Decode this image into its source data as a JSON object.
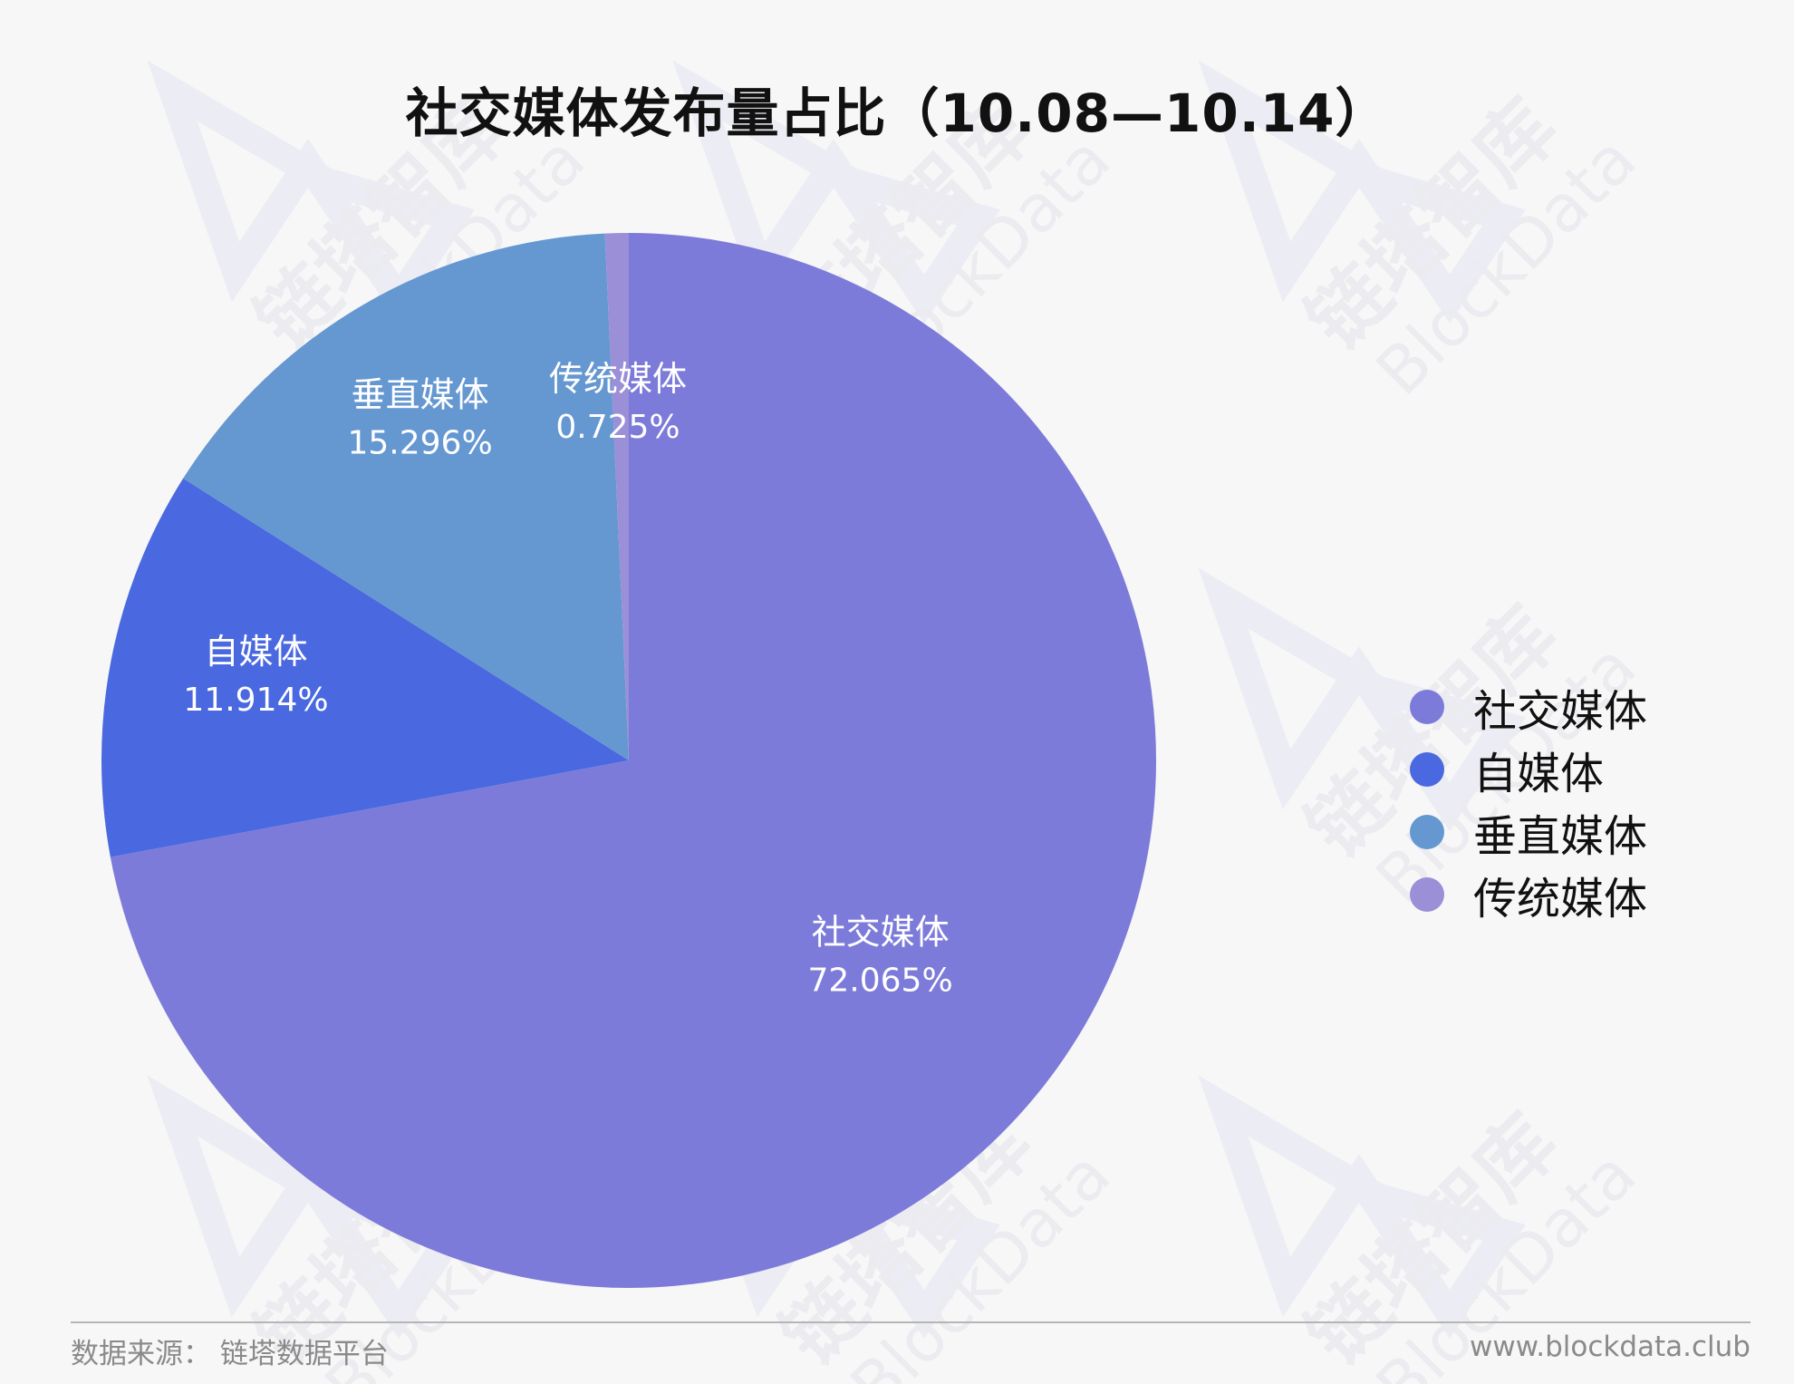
{
  "watermark": {
    "cn": "链塔智库",
    "en": "BlockData"
  },
  "chart_data": {
    "type": "pie",
    "title": "社交媒体发布量占比（10.08—10.14）",
    "unit": "%",
    "slices": [
      {
        "label": "社交媒体",
        "value": 72.065,
        "value_label": "72.065%",
        "color": "#7d7bd9"
      },
      {
        "label": "自媒体",
        "value": 11.914,
        "value_label": "11.914%",
        "color": "#4a69e0"
      },
      {
        "label": "垂直媒体",
        "value": 15.296,
        "value_label": "15.296%",
        "color": "#6597d0"
      },
      {
        "label": "传统媒体",
        "value": 0.725,
        "value_label": "0.725%",
        "color": "#9b8fd8"
      }
    ],
    "legend": {
      "placement": "right",
      "entries": [
        "社交媒体",
        "自媒体",
        "垂直媒体",
        "传统媒体"
      ]
    }
  },
  "footer": {
    "source": "数据来源：  链塔数据平台",
    "site": "www.blockdata.club"
  }
}
